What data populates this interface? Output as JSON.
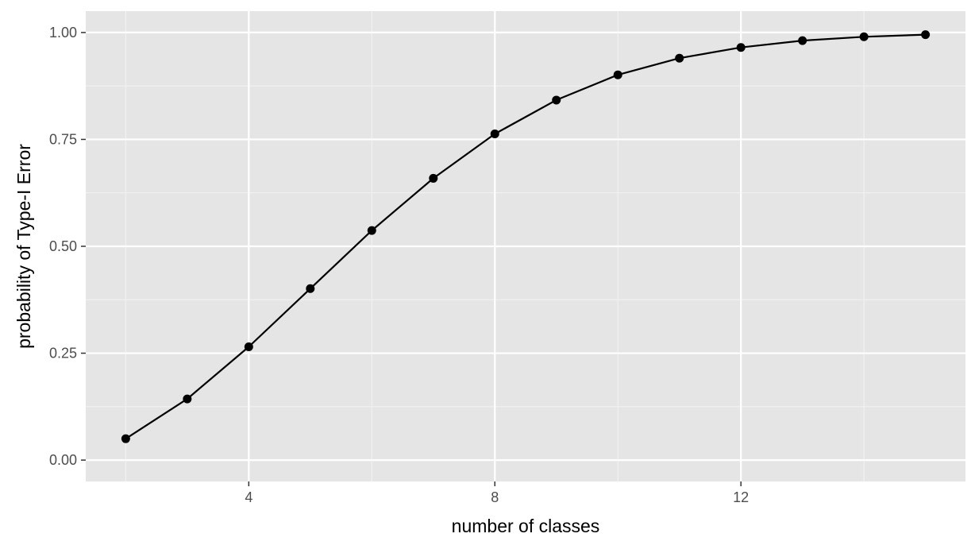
{
  "chart_data": {
    "type": "line",
    "title": "",
    "xlabel": "number of classes",
    "ylabel": "probability of Type-I Error",
    "x": [
      2,
      3,
      4,
      5,
      6,
      7,
      8,
      9,
      10,
      11,
      12,
      13,
      14,
      15
    ],
    "series": [
      {
        "values": [
          0.05,
          0.143,
          0.265,
          0.401,
          0.537,
          0.659,
          0.763,
          0.842,
          0.901,
          0.94,
          0.965,
          0.981,
          0.99,
          0.995
        ]
      }
    ],
    "xlim": [
      1.35,
      15.65
    ],
    "ylim": [
      -0.05,
      1.05
    ],
    "x_ticks": [
      4,
      8,
      12
    ],
    "x_tick_labels": [
      "4",
      "8",
      "12"
    ],
    "x_minor_ticks": [
      2,
      6,
      10,
      14
    ],
    "y_ticks": [
      0,
      0.25,
      0.5,
      0.75,
      1
    ],
    "y_tick_labels": [
      "0.00",
      "0.25",
      "0.50",
      "0.75",
      "1.00"
    ],
    "y_minor_ticks": [
      0.125,
      0.375,
      0.625,
      0.875
    ],
    "grid": true,
    "colors": {
      "panel_background": "#e5e5e5",
      "grid_major": "#ffffff",
      "grid_minor": "#f2f2f2",
      "line": "#000000",
      "points": "#000000",
      "tick_text": "#4d4d4d",
      "tick_mark": "#333333"
    }
  }
}
